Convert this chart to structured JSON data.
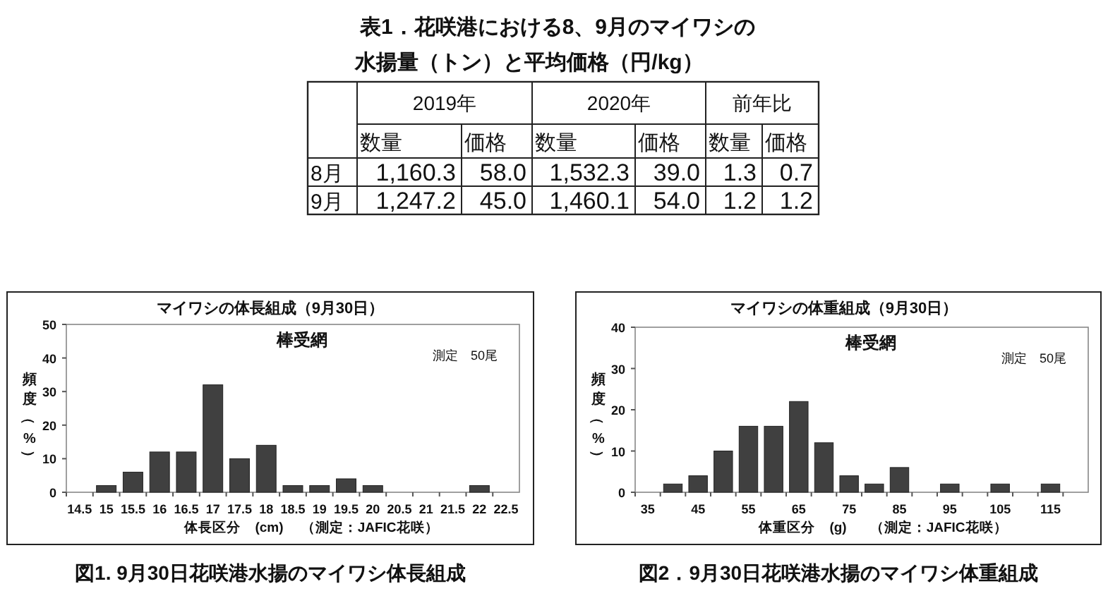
{
  "chart_data": [
    {
      "type": "other",
      "title": "表1．花咲港における8、9月のマイワシの",
      "subtitle": "水揚量（トン）と平均価格（円/kg）",
      "cell_labels": [
        [
          null,
          "2019年",
          null,
          "2020年",
          null,
          "前年比",
          null
        ],
        [
          null,
          "数量",
          "価格",
          "数量",
          "価格",
          "数量",
          "価格"
        ],
        [
          "8月",
          "1,160.3",
          "58.0",
          "1,532.3",
          "39.0",
          "1.3",
          "0.7"
        ],
        [
          "9月",
          "1,247.2",
          "45.0",
          "1,460.1",
          "54.0",
          "1.2",
          "1.2"
        ]
      ]
    },
    {
      "type": "bar",
      "title": "マイワシの体長組成（9月30日）",
      "xlabel": "体長区分　(cm)",
      "ylabel": "頻度（%）",
      "categories": [
        "14.5",
        "15",
        "15.5",
        "16",
        "16.5",
        "17",
        "17.5",
        "18",
        "18.5",
        "19",
        "19.5",
        "20",
        "20.5",
        "21",
        "21.5",
        "22",
        "22.5"
      ],
      "values": [
        0,
        2,
        6,
        12,
        12,
        32,
        10,
        14,
        2,
        2,
        4,
        2,
        0,
        0,
        0,
        2,
        0
      ],
      "color": "#404040",
      "ylim": [
        0,
        50
      ],
      "yticks": [
        0,
        10,
        20,
        30,
        40,
        50
      ],
      "annotations": [
        "棒受網",
        "測定　50尾",
        "（測定：JAFIC花咲）",
        "図1. 9月30日花咲港水揚のマイワシ体長組成"
      ]
    },
    {
      "type": "bar",
      "title": "マイワシの体重組成（9月30日）",
      "xlabel": "体重区分　(g)",
      "ylabel": "頻度（%）",
      "categories": [
        "35",
        null,
        "45",
        null,
        "55",
        null,
        "65",
        null,
        "75",
        null,
        "85",
        null,
        "95",
        null,
        "105",
        null,
        "115",
        null
      ],
      "values": [
        0,
        2,
        4,
        10,
        16,
        16,
        22,
        12,
        4,
        2,
        6,
        0,
        2,
        0,
        2,
        0,
        2,
        0
      ],
      "color": "#404040",
      "ylim": [
        0,
        40
      ],
      "yticks": [
        0,
        10,
        20,
        30,
        40
      ],
      "annotations": [
        "棒受網",
        "測定　50尾",
        "（測定：JAFIC花咲）",
        "図2．9月30日花咲港水揚のマイワシ体重組成"
      ]
    }
  ]
}
